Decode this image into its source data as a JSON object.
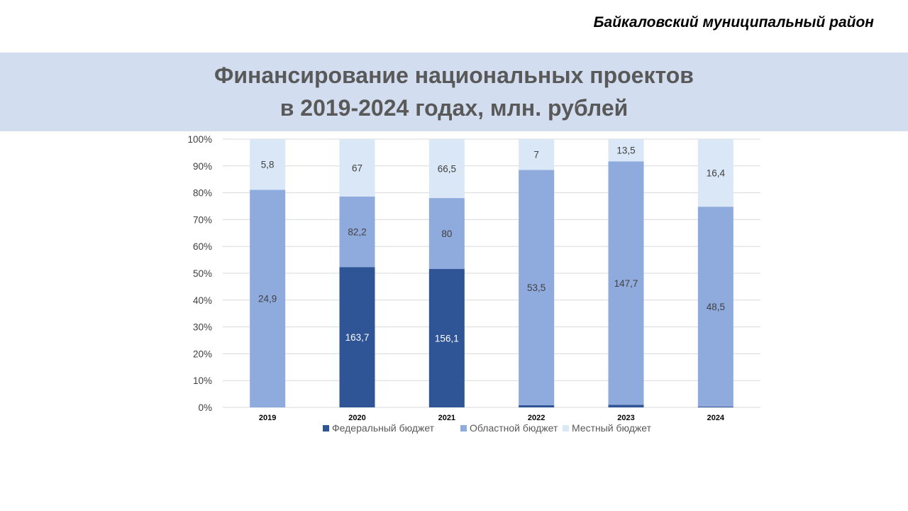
{
  "header": {
    "region": "Байкаловский муниципальный район"
  },
  "title": {
    "line1": "Финансирование национальных проектов",
    "line2": "в 2019-2024 годах, млн. рублей"
  },
  "colors": {
    "federal": "#2f5597",
    "regional": "#8faadc",
    "local": "#dae7f6",
    "band": "#d2deef",
    "grid": "#d9d9d9"
  },
  "chart_data": {
    "type": "bar",
    "stacking": "percent",
    "categories": [
      "2019",
      "2020",
      "2021",
      "2022",
      "2023",
      "2024"
    ],
    "series": [
      {
        "name": "Федеральный бюджет",
        "color": "#2f5597",
        "values": [
          0,
          163.7,
          156.1,
          0.5,
          1.6,
          0.2
        ],
        "labels": [
          "0",
          "163,7",
          "156,1",
          "0,5",
          "1,6",
          "0,2"
        ]
      },
      {
        "name": "Областной бюджет",
        "color": "#8faadc",
        "values": [
          24.9,
          82.2,
          80,
          53.5,
          147.7,
          48.5
        ],
        "labels": [
          "24,9",
          "82,2",
          "80",
          "53,5",
          "147,7",
          "48,5"
        ]
      },
      {
        "name": "Местный бюджет",
        "color": "#dae7f6",
        "values": [
          5.8,
          67,
          66.5,
          7,
          13.5,
          16.4
        ],
        "labels": [
          "5,8",
          "67",
          "66,5",
          "7",
          "13,5",
          "16,4"
        ]
      }
    ],
    "y_ticks": [
      "0%",
      "10%",
      "20%",
      "30%",
      "40%",
      "50%",
      "60%",
      "70%",
      "80%",
      "90%",
      "100%"
    ],
    "ylim": [
      0,
      100
    ],
    "grid": true,
    "legend_position": "bottom"
  }
}
